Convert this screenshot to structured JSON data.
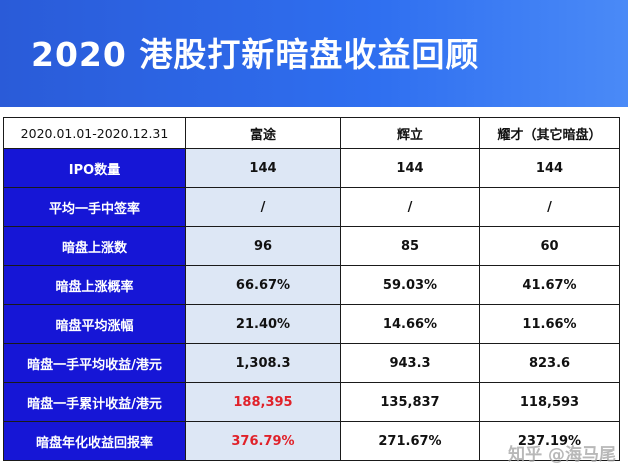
{
  "title": "2020 港股打新暗盘收益回顾",
  "table": {
    "header": {
      "period": "2020.01.01-2020.12.31",
      "columns": [
        "富途",
        "辉立",
        "耀才（其它暗盘）"
      ]
    },
    "rows": [
      {
        "label": "IPO数量",
        "values": [
          "144",
          "144",
          "144"
        ]
      },
      {
        "label": "平均一手中签率",
        "values": [
          "/",
          "/",
          "/"
        ]
      },
      {
        "label": "暗盘上涨数",
        "values": [
          "96",
          "85",
          "60"
        ]
      },
      {
        "label": "暗盘上涨概率",
        "values": [
          "66.67%",
          "59.03%",
          "41.67%"
        ]
      },
      {
        "label": "暗盘平均涨幅",
        "values": [
          "21.40%",
          "14.66%",
          "11.66%"
        ]
      },
      {
        "label": "暗盘一手平均收益/港元",
        "values": [
          "1,308.3",
          "943.3",
          "823.6"
        ]
      },
      {
        "label": "暗盘一手累计收益/港元",
        "values": [
          "188,395",
          "135,837",
          "118,593"
        ]
      },
      {
        "label": "暗盘年化收益回报率",
        "values": [
          "376.79%",
          "271.67%",
          "237.19%"
        ]
      }
    ]
  },
  "watermark": "知乎 @海马尾",
  "colors": {
    "banner": "#2f6ff0",
    "label_bg": "#1616d6",
    "futu_col_bg": "#dde7f5",
    "highlight_red": "#e0222a"
  }
}
